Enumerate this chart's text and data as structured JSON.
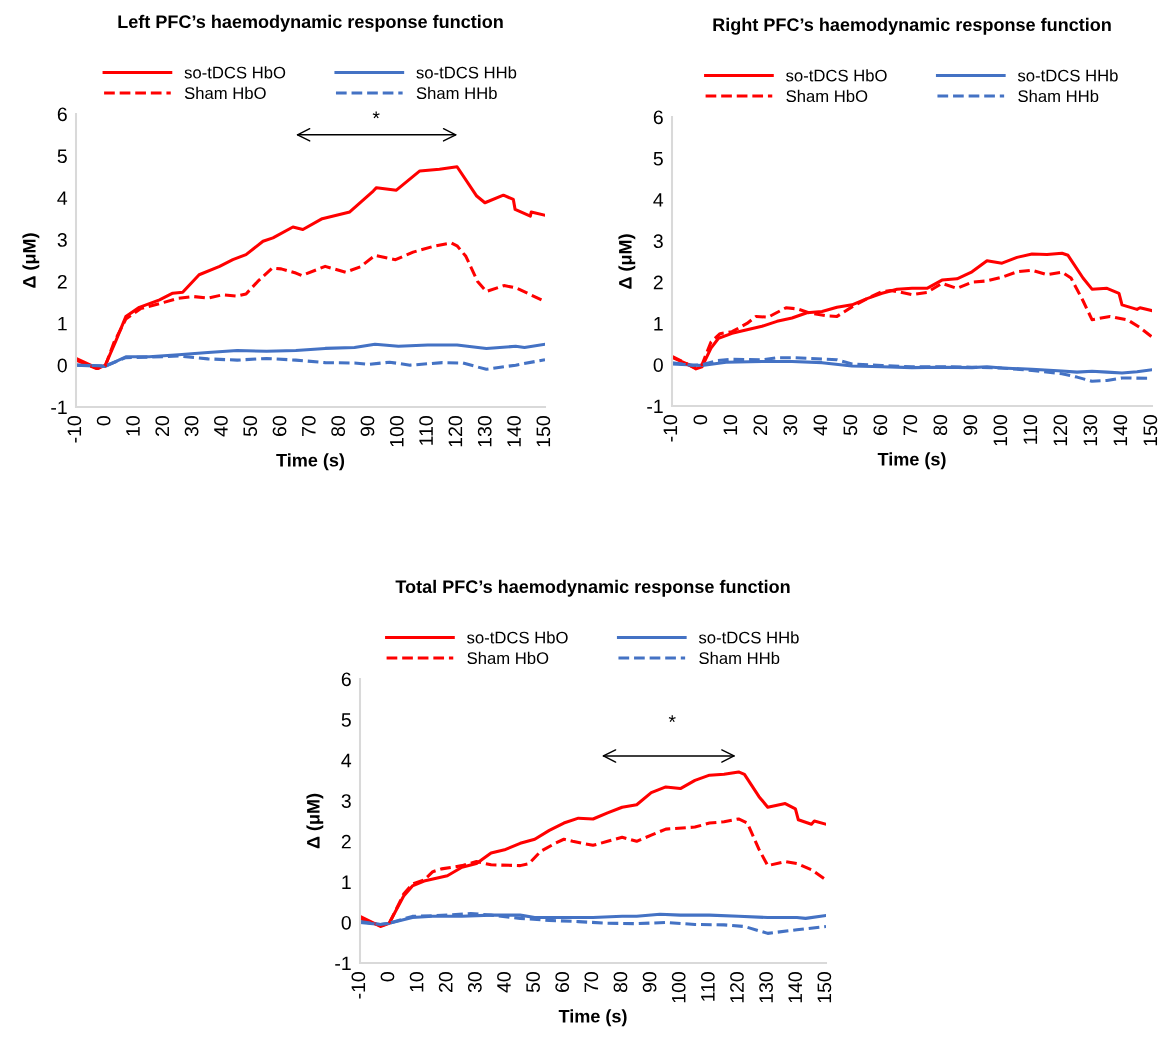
{
  "chart_data": [
    {
      "type": "line",
      "title": "Left PFC’s haemodynamic response function",
      "xlabel": "Time (s)",
      "ylabel": "Δ (μM)",
      "xlim": [
        -10,
        150
      ],
      "xticks": [
        -10,
        0,
        10,
        20,
        30,
        40,
        50,
        60,
        70,
        80,
        90,
        100,
        110,
        120,
        130,
        140,
        150
      ],
      "ylim": [
        -1,
        6
      ],
      "yticks": [
        -1,
        0,
        1,
        2,
        3,
        4,
        5,
        6
      ],
      "grid": false,
      "legend": "top",
      "marker": "none",
      "annotations": [
        "*"
      ],
      "series": [
        {
          "name": "so-tDCS HbO",
          "color": "#ff0000",
          "line_style": "solid",
          "x": [
            -10,
            -2.6,
            0,
            3.7,
            7,
            11.6,
            18.5,
            23,
            26.4,
            32,
            39,
            43.5,
            48,
            53.8,
            57.2,
            64,
            67.4,
            74,
            83.4,
            91.4,
            92.5,
            99.3,
            107.3,
            114,
            120,
            126.7,
            129.5,
            135.8,
            139.2,
            139.8,
            145,
            145.3,
            150
          ],
          "values": [
            0.16,
            -0.08,
            0,
            0.6,
            1.16,
            1.38,
            1.56,
            1.72,
            1.74,
            2.16,
            2.36,
            2.52,
            2.64,
            2.96,
            3.04,
            3.3,
            3.24,
            3.5,
            3.66,
            4.16,
            4.24,
            4.18,
            4.64,
            4.68,
            4.74,
            4.04,
            3.88,
            4.06,
            3.96,
            3.72,
            3.56,
            3.66,
            3.58
          ]
        },
        {
          "name": "so-tDCS HHb",
          "color": "#4472c4",
          "line_style": "solid",
          "x": [
            -10,
            0,
            7,
            15,
            25,
            35,
            45,
            55,
            65,
            75,
            85,
            92,
            100,
            110,
            120,
            130,
            140,
            143,
            150
          ],
          "values": [
            0,
            -0.03,
            0.2,
            0.2,
            0.25,
            0.3,
            0.35,
            0.33,
            0.35,
            0.4,
            0.42,
            0.5,
            0.45,
            0.48,
            0.48,
            0.4,
            0.45,
            0.42,
            0.5
          ]
        },
        {
          "name": "Sham HbO",
          "color": "#ff0000",
          "line_style": "dashed",
          "x": [
            -10,
            -3,
            0,
            3,
            7,
            12,
            20,
            25,
            30,
            35,
            40,
            45,
            48,
            52,
            57,
            60,
            65,
            67,
            75,
            82,
            87,
            92,
            99,
            105,
            112,
            118,
            120,
            123,
            127,
            130,
            136,
            140,
            150
          ],
          "values": [
            0.12,
            -0.08,
            -0.02,
            0.55,
            1.1,
            1.35,
            1.5,
            1.6,
            1.64,
            1.6,
            1.68,
            1.65,
            1.7,
            2.0,
            2.32,
            2.3,
            2.2,
            2.14,
            2.36,
            2.22,
            2.35,
            2.62,
            2.52,
            2.7,
            2.84,
            2.92,
            2.85,
            2.6,
            2.0,
            1.76,
            1.9,
            1.85,
            1.52
          ]
        },
        {
          "name": "Sham HHb",
          "color": "#4472c4",
          "line_style": "dashed",
          "x": [
            -10,
            0,
            7,
            20,
            25,
            35,
            45,
            55,
            65,
            75,
            85,
            90,
            97,
            104,
            115,
            122,
            130,
            140,
            150
          ],
          "values": [
            0,
            -0.02,
            0.18,
            0.2,
            0.22,
            0.15,
            0.12,
            0.16,
            0.12,
            0.06,
            0.05,
            0.02,
            0.07,
            0,
            0.06,
            0.05,
            -0.1,
            0,
            0.13
          ]
        }
      ]
    },
    {
      "type": "line",
      "title": "Right PFC’s haemodynamic response function",
      "xlabel": "Time (s)",
      "ylabel": "Δ (μM)",
      "xlim": [
        -10,
        150
      ],
      "xticks": [
        -10,
        0,
        10,
        20,
        30,
        40,
        50,
        60,
        70,
        80,
        90,
        100,
        110,
        120,
        130,
        140,
        150
      ],
      "ylim": [
        -1,
        6
      ],
      "yticks": [
        -1,
        0,
        1,
        2,
        3,
        4,
        5,
        6
      ],
      "grid": false,
      "legend": "top",
      "marker": "none",
      "series": [
        {
          "name": "so-tDCS HbO",
          "color": "#ff0000",
          "line_style": "solid",
          "x": [
            -10,
            -5,
            -2,
            0,
            3,
            5.5,
            10,
            20,
            25,
            30,
            35,
            40,
            45,
            50,
            55,
            60,
            65,
            70,
            75,
            80,
            85,
            90,
            95,
            100,
            105,
            110,
            115,
            120,
            122,
            127,
            130,
            135,
            139,
            140,
            145,
            146,
            150
          ],
          "values": [
            0.18,
            0.02,
            -0.1,
            -0.05,
            0.4,
            0.64,
            0.76,
            0.93,
            1.05,
            1.13,
            1.26,
            1.29,
            1.39,
            1.45,
            1.6,
            1.73,
            1.83,
            1.85,
            1.85,
            2.05,
            2.08,
            2.25,
            2.52,
            2.46,
            2.6,
            2.68,
            2.67,
            2.7,
            2.65,
            2.1,
            1.83,
            1.85,
            1.73,
            1.45,
            1.34,
            1.38,
            1.31
          ]
        },
        {
          "name": "so-tDCS HHb",
          "color": "#4472c4",
          "line_style": "solid",
          "x": [
            -10,
            0,
            8,
            20,
            30,
            40,
            50,
            60,
            70,
            80,
            90,
            95,
            100,
            110,
            120,
            125,
            130,
            135,
            140,
            145,
            150
          ],
          "values": [
            0.02,
            -0.02,
            0.06,
            0.08,
            0.08,
            0.05,
            -0.03,
            -0.05,
            -0.07,
            -0.06,
            -0.07,
            -0.05,
            -0.08,
            -0.11,
            -0.15,
            -0.18,
            -0.16,
            -0.18,
            -0.2,
            -0.17,
            -0.12
          ]
        },
        {
          "name": "Sham HbO",
          "color": "#ff0000",
          "line_style": "dashed",
          "x": [
            -10,
            -3,
            0,
            3,
            6,
            10,
            15,
            18,
            22,
            28,
            32,
            36,
            42,
            45,
            50,
            55,
            60,
            63,
            70,
            75,
            80,
            85,
            90,
            95,
            100,
            105,
            110,
            115,
            120,
            123,
            127,
            130,
            136,
            142,
            146,
            150
          ],
          "values": [
            0.2,
            -0.05,
            0,
            0.55,
            0.75,
            0.8,
            1.0,
            1.17,
            1.15,
            1.38,
            1.35,
            1.25,
            1.18,
            1.17,
            1.4,
            1.6,
            1.77,
            1.8,
            1.7,
            1.75,
            1.97,
            1.85,
            2.0,
            2.03,
            2.12,
            2.25,
            2.29,
            2.18,
            2.24,
            2.1,
            1.55,
            1.09,
            1.17,
            1.08,
            0.9,
            0.67
          ]
        },
        {
          "name": "Sham HHb",
          "color": "#4472c4",
          "line_style": "dashed",
          "x": [
            -10,
            -3,
            0,
            5,
            10,
            20,
            25,
            30,
            40,
            45,
            50,
            60,
            70,
            80,
            90,
            100,
            110,
            120,
            125,
            130,
            135,
            140,
            150
          ],
          "values": [
            0.05,
            -0.02,
            0,
            0.1,
            0.13,
            0.12,
            0.17,
            0.17,
            0.14,
            0.12,
            0.02,
            -0.02,
            -0.05,
            -0.05,
            -0.06,
            -0.08,
            -0.14,
            -0.22,
            -0.3,
            -0.4,
            -0.38,
            -0.32,
            -0.33
          ]
        }
      ]
    },
    {
      "type": "line",
      "title": "Total PFC’s haemodynamic response function",
      "xlabel": "Time (s)",
      "ylabel": "Δ (μM)",
      "xlim": [
        -10,
        150
      ],
      "xticks": [
        -10,
        0,
        10,
        20,
        30,
        40,
        50,
        60,
        70,
        80,
        90,
        100,
        110,
        120,
        130,
        140,
        150
      ],
      "ylim": [
        -1,
        6
      ],
      "yticks": [
        -1,
        0,
        1,
        2,
        3,
        4,
        5,
        6
      ],
      "grid": false,
      "legend": "top",
      "marker": "none",
      "annotations": [
        "*"
      ],
      "series": [
        {
          "name": "so-tDCS HbO",
          "color": "#ff0000",
          "line_style": "solid",
          "x": [
            -10,
            -3,
            0,
            5,
            8,
            12,
            20,
            25,
            30,
            35,
            40,
            45,
            50,
            55,
            60,
            65,
            70,
            75,
            80,
            85,
            90,
            95,
            100,
            105,
            110,
            115,
            120,
            122,
            127,
            130,
            136,
            139.5,
            140.5,
            145,
            146,
            150
          ],
          "values": [
            0.15,
            -0.1,
            -0.02,
            0.65,
            0.9,
            1.02,
            1.15,
            1.36,
            1.45,
            1.71,
            1.8,
            1.95,
            2.05,
            2.27,
            2.45,
            2.57,
            2.55,
            2.7,
            2.84,
            2.9,
            3.2,
            3.34,
            3.3,
            3.5,
            3.63,
            3.65,
            3.71,
            3.65,
            3.1,
            2.84,
            2.93,
            2.8,
            2.53,
            2.42,
            2.5,
            2.42
          ]
        },
        {
          "name": "so-tDCS HHb",
          "color": "#4472c4",
          "line_style": "solid",
          "x": [
            -10,
            -3,
            0,
            8,
            15,
            25,
            35,
            45,
            50,
            60,
            70,
            80,
            85,
            93,
            100,
            110,
            120,
            130,
            140,
            143,
            150
          ],
          "values": [
            0,
            -0.05,
            -0.02,
            0.12,
            0.15,
            0.15,
            0.18,
            0.18,
            0.12,
            0.12,
            0.12,
            0.15,
            0.15,
            0.2,
            0.18,
            0.18,
            0.15,
            0.12,
            0.12,
            0.1,
            0.17
          ]
        },
        {
          "name": "Sham HbO",
          "color": "#ff0000",
          "line_style": "dashed",
          "x": [
            -10,
            -3,
            0,
            5,
            8,
            12,
            15,
            18,
            25,
            30,
            35,
            45,
            48,
            52,
            57,
            60,
            63,
            70,
            75,
            80,
            85,
            90,
            95,
            105,
            110,
            115,
            120,
            123,
            127,
            130,
            136,
            140,
            145,
            150
          ],
          "values": [
            0.1,
            -0.08,
            -0.03,
            0.7,
            0.95,
            1.05,
            1.25,
            1.32,
            1.4,
            1.5,
            1.42,
            1.4,
            1.45,
            1.75,
            1.95,
            2.05,
            2.0,
            1.9,
            2.0,
            2.1,
            2.0,
            2.15,
            2.3,
            2.35,
            2.45,
            2.48,
            2.55,
            2.45,
            1.8,
            1.4,
            1.5,
            1.45,
            1.3,
            1.05
          ]
        },
        {
          "name": "Sham HHb",
          "color": "#4472c4",
          "line_style": "dashed",
          "x": [
            -10,
            -3,
            0,
            8,
            20,
            28,
            35,
            45,
            55,
            65,
            75,
            85,
            95,
            105,
            115,
            122,
            130,
            140,
            150
          ],
          "values": [
            0.02,
            -0.05,
            -0.02,
            0.15,
            0.18,
            0.22,
            0.18,
            0.1,
            0.05,
            0.02,
            -0.02,
            -0.03,
            0,
            -0.05,
            -0.06,
            -0.1,
            -0.27,
            -0.18,
            -0.1
          ]
        }
      ]
    }
  ]
}
